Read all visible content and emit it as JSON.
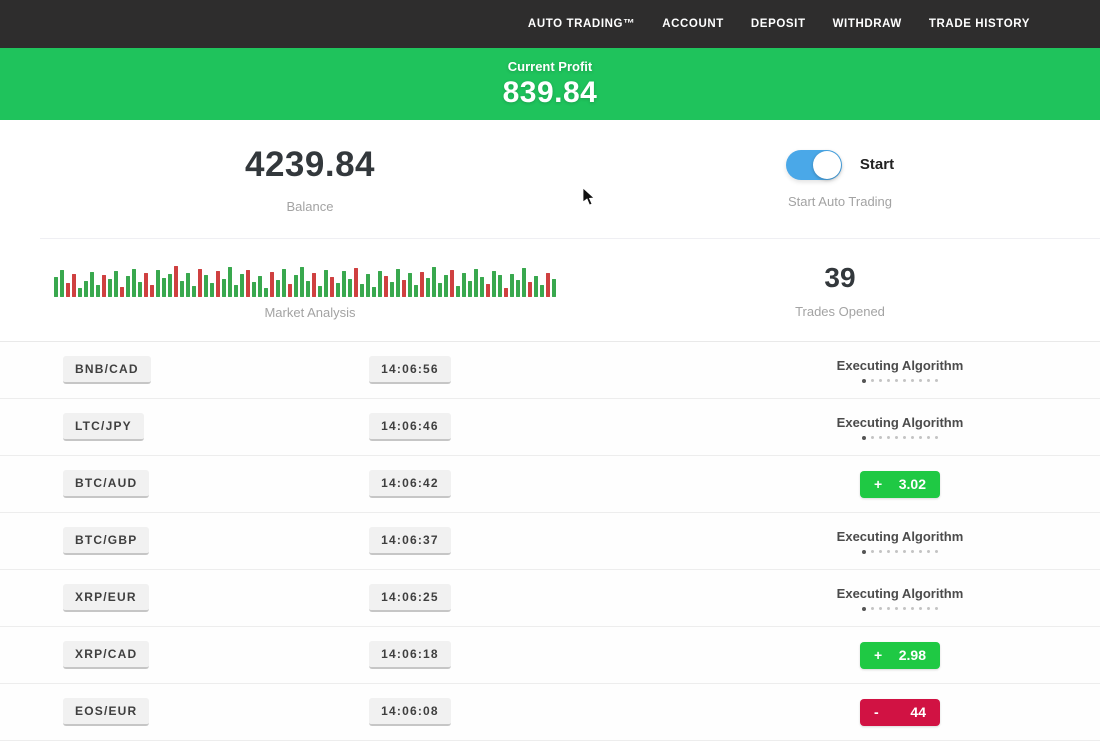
{
  "navbar": {
    "items": [
      {
        "label": "AUTO TRADING™"
      },
      {
        "label": "ACCOUNT"
      },
      {
        "label": "DEPOSIT"
      },
      {
        "label": "WITHDRAW"
      },
      {
        "label": "TRADE HISTORY"
      }
    ]
  },
  "profit_banner": {
    "label": "Current Profit",
    "value": "839.84"
  },
  "stats": {
    "balance_value": "4239.84",
    "balance_label": "Balance",
    "toggle_label": "Start",
    "toggle_caption": "Start Auto Trading",
    "toggle_state": "on",
    "trades_count": "39",
    "trades_count_label": "Trades Opened",
    "chart_caption": "Market Analysis"
  },
  "chart_data": {
    "type": "bar",
    "title": "Market Analysis",
    "values": [
      20,
      27,
      14,
      23,
      9,
      16,
      25,
      12,
      22,
      18,
      26,
      10,
      21,
      28,
      15,
      24,
      12,
      27,
      19,
      23,
      31,
      16,
      24,
      11,
      28,
      22,
      14,
      26,
      18,
      30,
      12,
      23,
      27,
      15,
      21,
      9,
      25,
      17,
      28,
      13,
      22,
      30,
      16,
      24,
      11,
      27,
      20,
      14,
      26,
      18,
      29,
      13,
      23,
      10,
      26,
      21,
      15,
      28,
      17,
      24,
      12,
      25,
      19,
      30,
      14,
      22,
      27,
      11,
      24,
      16,
      28,
      20,
      13,
      26,
      22,
      9,
      23,
      17,
      29,
      15,
      21,
      12,
      24,
      18
    ],
    "colors": "ggrrggggrggrgggrrgggrgggrggrggggrgggrggrgggrggrgggrggggrggrggrggggrgggggrggrgggrggrg",
    "ylim": [
      0,
      36
    ],
    "legend": "none",
    "grid": false
  },
  "trades": [
    {
      "pair": "BNB/CAD",
      "time": "14:06:56",
      "status": "executing",
      "status_label": "Executing Algorithm"
    },
    {
      "pair": "LTC/JPY",
      "time": "14:06:46",
      "status": "executing",
      "status_label": "Executing Algorithm"
    },
    {
      "pair": "BTC/AUD",
      "time": "14:06:42",
      "status": "profit",
      "result_sign": "+",
      "result_value": "3.02"
    },
    {
      "pair": "BTC/GBP",
      "time": "14:06:37",
      "status": "executing",
      "status_label": "Executing Algorithm"
    },
    {
      "pair": "XRP/EUR",
      "time": "14:06:25",
      "status": "executing",
      "status_label": "Executing Algorithm"
    },
    {
      "pair": "XRP/CAD",
      "time": "14:06:18",
      "status": "profit",
      "result_sign": "+",
      "result_value": "2.98"
    },
    {
      "pair": "EOS/EUR",
      "time": "14:06:08",
      "status": "loss",
      "result_sign": "-",
      "result_value": "44"
    }
  ],
  "colors": {
    "navbar_bg": "#2e2d2d",
    "banner_green": "#1fc35c",
    "badge_green": "#1fc944",
    "badge_red": "#d11243",
    "toggle_blue": "#4aa8e8",
    "bar_green": "#39a84e",
    "bar_red": "#cf4040"
  }
}
